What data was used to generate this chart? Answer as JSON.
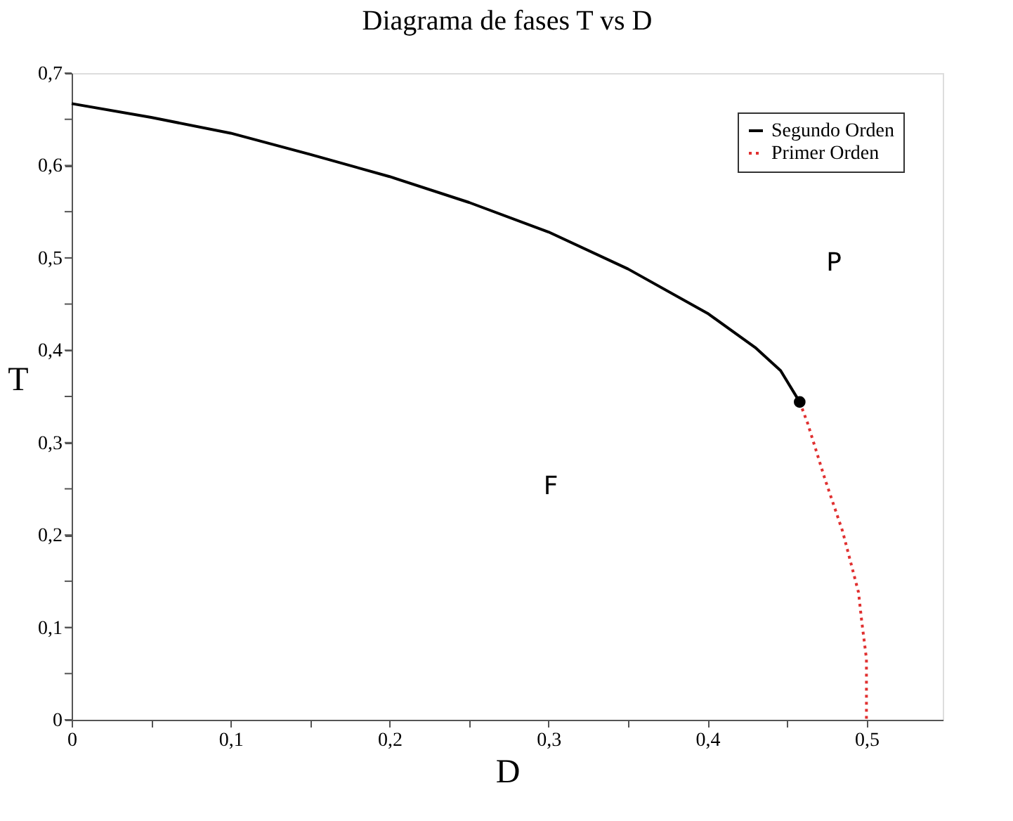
{
  "chart_data": {
    "type": "line",
    "title": "Diagrama de fases T vs D",
    "xlabel": "D",
    "ylabel": "T",
    "xlim": [
      0,
      0.548
    ],
    "ylim": [
      0,
      0.7
    ],
    "xticks": [
      0,
      {
        "value": 0.05,
        "label": null
      },
      {
        "value": 0.1,
        "label": "0,1"
      },
      {
        "value": 0.15,
        "label": null
      },
      {
        "value": 0.2,
        "label": "0,2"
      },
      {
        "value": 0.25,
        "label": null
      },
      {
        "value": 0.3,
        "label": "0,3"
      },
      {
        "value": 0.35,
        "label": null
      },
      {
        "value": 0.4,
        "label": "0,4"
      },
      {
        "value": 0.45,
        "label": null
      },
      {
        "value": 0.5,
        "label": "0,5"
      }
    ],
    "yticks": [
      0,
      {
        "value": 0.05,
        "label": null
      },
      {
        "value": 0.1,
        "label": "0,1"
      },
      {
        "value": 0.15,
        "label": null
      },
      {
        "value": 0.2,
        "label": "0,2"
      },
      {
        "value": 0.25,
        "label": null
      },
      {
        "value": 0.3,
        "label": "0,3"
      },
      {
        "value": 0.35,
        "label": null
      },
      {
        "value": 0.4,
        "label": "0,4"
      },
      {
        "value": 0.45,
        "label": null
      },
      {
        "value": 0.5,
        "label": "0,5"
      },
      {
        "value": 0.55,
        "label": null
      },
      {
        "value": 0.6,
        "label": "0,6"
      },
      {
        "value": 0.65,
        "label": null
      },
      {
        "value": 0.7,
        "label": "0,7"
      }
    ],
    "grid": false,
    "legend": "top right",
    "marker": "none",
    "series": [
      {
        "name": "Segundo Orden",
        "color": "#000000",
        "line_style": "solid",
        "x": [
          0,
          0.05,
          0.1,
          0.15,
          0.2,
          0.25,
          0.3,
          0.35,
          0.4,
          0.43,
          0.446,
          0.458
        ],
        "values": [
          0.667,
          0.652,
          0.635,
          0.612,
          0.588,
          0.56,
          0.528,
          0.488,
          0.44,
          0.403,
          0.378,
          0.344
        ]
      },
      {
        "name": "Primer Orden",
        "color": "#e03030",
        "line_style": "dotted",
        "x": [
          0.458,
          0.463,
          0.474,
          0.485,
          0.495,
          0.497,
          0.5,
          0.5
        ],
        "values": [
          0.344,
          0.321,
          0.26,
          0.204,
          0.138,
          0.107,
          0.066,
          0
        ]
      },
      {
        "type": "scatter",
        "marker": "circle",
        "color": "#000000",
        "x": [
          0.458
        ],
        "values": [
          0.344
        ]
      }
    ],
    "annotations": [
      "P",
      "F"
    ]
  }
}
